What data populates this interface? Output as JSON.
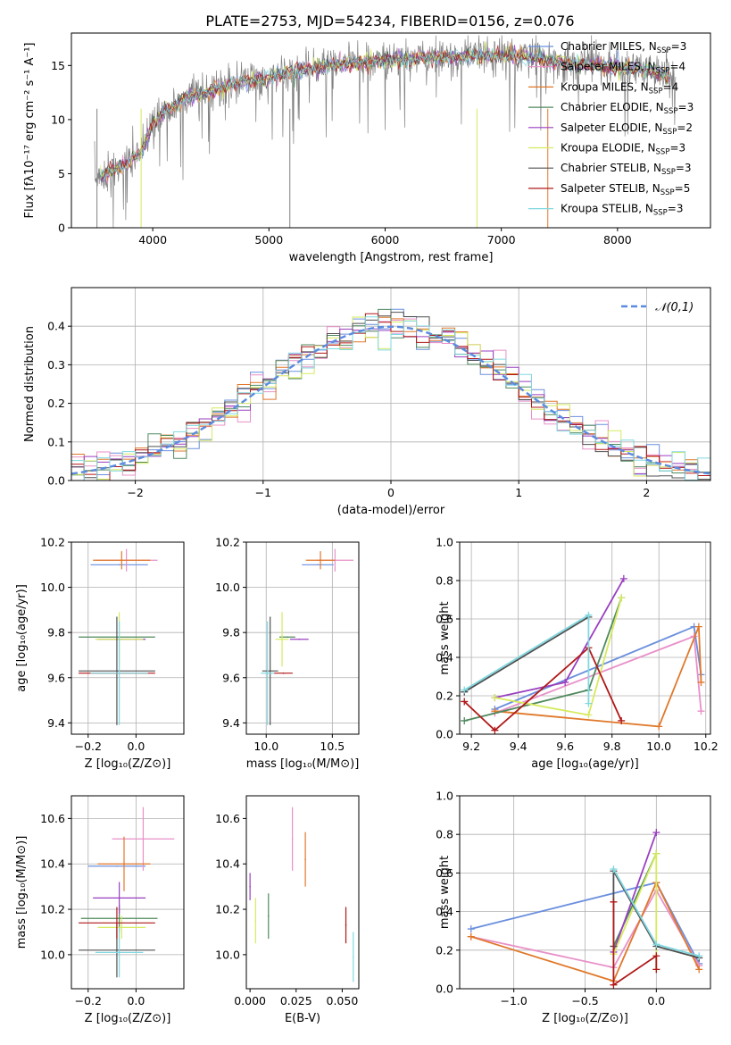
{
  "figure_title": "PLATE=2753, MJD=54234, FIBERID=0156, z=0.076",
  "models": [
    {
      "name": "Chabrier MILES",
      "nssp": "3",
      "color": "#6a8fde"
    },
    {
      "name": "Salpeter MILES",
      "nssp": "4",
      "color": "#e890c8"
    },
    {
      "name": "Kroupa MILES",
      "nssp": "4",
      "color": "#e0782a"
    },
    {
      "name": "Chabrier ELODIE",
      "nssp": "3",
      "color": "#4f8a5e"
    },
    {
      "name": "Salpeter ELODIE",
      "nssp": "2",
      "color": "#9a3fc0"
    },
    {
      "name": "Kroupa ELODIE",
      "nssp": "3",
      "color": "#d6ea5e"
    },
    {
      "name": "Chabrier STELIB",
      "nssp": "3",
      "color": "#505050"
    },
    {
      "name": "Salpeter STELIB",
      "nssp": "5",
      "color": "#b01818"
    },
    {
      "name": "Kroupa STELIB",
      "nssp": "3",
      "color": "#80d8e0"
    }
  ],
  "chart_data": [
    {
      "id": "spectrum",
      "type": "line",
      "xlabel": "wavelength [Angstrom, rest frame]",
      "ylabel": "Flux [fλ10⁻¹⁷ erg cm⁻² s⁻¹ A⁻¹]",
      "xlim": [
        3300,
        8800
      ],
      "ylim": [
        0,
        18
      ],
      "xticks": [
        4000,
        5000,
        6000,
        7000,
        8000
      ],
      "yticks": [
        0,
        5,
        10,
        15
      ],
      "grid": false,
      "legend": "top-right",
      "continuum": {
        "x": [
          3500,
          3700,
          3900,
          4000,
          4100,
          4300,
          4500,
          4800,
          5000,
          5200,
          5500,
          5800,
          6000,
          6300,
          6600,
          6900,
          7200,
          7400,
          7600,
          7800,
          8000,
          8200,
          8400,
          8500
        ],
        "y": [
          4.5,
          5.5,
          7.0,
          9.5,
          10.8,
          12.0,
          12.8,
          13.5,
          13.8,
          14.5,
          15.0,
          15.3,
          15.5,
          15.7,
          15.8,
          16.0,
          15.8,
          15.5,
          15.2,
          15.0,
          14.8,
          14.6,
          14.3,
          13.5
        ]
      }
    },
    {
      "id": "residuals",
      "type": "bar",
      "xlabel": "(data-model)/error",
      "ylabel": "Normed distribution",
      "xlim": [
        -2.5,
        2.5
      ],
      "ylim": [
        0,
        0.5
      ],
      "xticks": [
        -2,
        -1,
        0,
        1,
        2
      ],
      "yticks": [
        0.0,
        0.1,
        0.2,
        0.3,
        0.4
      ],
      "grid": true,
      "legend": "top-right",
      "reference_label": "𝒩(0,1)",
      "bin_width": 0.1
    },
    {
      "id": "age_vs_Z",
      "type": "scatter",
      "xlabel": "Z [log₁₀(Z/Z⊙)]",
      "ylabel": "age  [log₁₀(age/yr)]",
      "xlim": [
        -0.27,
        0.2
      ],
      "ylim": [
        9.35,
        10.2
      ],
      "xticks": [
        -0.2,
        0.0
      ],
      "yticks": [
        9.4,
        9.6,
        9.8,
        10.0,
        10.2
      ],
      "grid": true,
      "points": [
        {
          "x": -0.07,
          "xe": 0.12,
          "y": 10.1,
          "ye": 0.0,
          "model": 0
        },
        {
          "x": -0.04,
          "xe": 0.13,
          "y": 10.12,
          "ye": 0.05,
          "model": 1
        },
        {
          "x": -0.06,
          "xe": 0.12,
          "y": 10.12,
          "ye": 0.04,
          "model": 2
        },
        {
          "x": -0.08,
          "xe": 0.16,
          "y": 9.78,
          "ye": 0.0,
          "model": 3
        },
        {
          "x": -0.06,
          "xe": 0.1,
          "y": 9.77,
          "ye": 0.0,
          "model": 4
        },
        {
          "x": -0.07,
          "xe": 0.1,
          "y": 9.77,
          "ye": 0.12,
          "model": 5
        },
        {
          "x": -0.08,
          "xe": 0.16,
          "y": 9.63,
          "ye": 0.24,
          "model": 6
        },
        {
          "x": -0.08,
          "xe": 0.16,
          "y": 9.62,
          "ye": 0.0,
          "model": 7
        },
        {
          "x": -0.07,
          "xe": 0.12,
          "y": 9.62,
          "ye": 0.23,
          "model": 8
        }
      ]
    },
    {
      "id": "age_vs_mass",
      "type": "scatter",
      "xlabel": "mass [log₁₀(M/M⊙)]",
      "ylabel": "",
      "xlim": [
        9.85,
        10.7
      ],
      "ylim": [
        9.35,
        10.2
      ],
      "xticks": [
        10.0,
        10.5
      ],
      "yticks": [
        9.4,
        9.6,
        9.8,
        10.0,
        10.2
      ],
      "grid": true,
      "points": [
        {
          "x": 10.39,
          "xe": 0.12,
          "y": 10.1,
          "ye": 0.0,
          "model": 0
        },
        {
          "x": 10.52,
          "xe": 0.14,
          "y": 10.12,
          "ye": 0.05,
          "model": 1
        },
        {
          "x": 10.41,
          "xe": 0.11,
          "y": 10.12,
          "ye": 0.04,
          "model": 2
        },
        {
          "x": 10.16,
          "xe": 0.06,
          "y": 9.78,
          "ye": 0.0,
          "model": 3
        },
        {
          "x": 10.25,
          "xe": 0.07,
          "y": 9.77,
          "ye": 0.0,
          "model": 4
        },
        {
          "x": 10.12,
          "xe": 0.05,
          "y": 9.77,
          "ye": 0.12,
          "model": 5
        },
        {
          "x": 10.03,
          "xe": 0.06,
          "y": 9.63,
          "ye": 0.24,
          "model": 6
        },
        {
          "x": 10.13,
          "xe": 0.07,
          "y": 9.62,
          "ye": 0.0,
          "model": 7
        },
        {
          "x": 10.01,
          "xe": 0.05,
          "y": 9.62,
          "ye": 0.23,
          "model": 8
        }
      ]
    },
    {
      "id": "weight_vs_age",
      "type": "line",
      "xlabel": "age  [log₁₀(age/yr)]",
      "ylabel": "mass weight",
      "xlim": [
        9.15,
        10.22
      ],
      "ylim": [
        0.0,
        1.0
      ],
      "xticks": [
        9.2,
        9.4,
        9.6,
        9.8,
        10.0,
        10.2
      ],
      "yticks": [
        0.0,
        0.2,
        0.4,
        0.6,
        0.8,
        1.0
      ],
      "grid": true,
      "series": [
        {
          "model": 0,
          "x": [
            9.3,
            10.15,
            10.18
          ],
          "y": [
            0.13,
            0.56,
            0.31
          ]
        },
        {
          "model": 1,
          "x": [
            9.3,
            10.15,
            10.18
          ],
          "y": [
            0.11,
            0.51,
            0.12
          ]
        },
        {
          "model": 2,
          "x": [
            9.3,
            10.0,
            10.17,
            10.18
          ],
          "y": [
            0.12,
            0.04,
            0.56,
            0.27
          ]
        },
        {
          "model": 3,
          "x": [
            9.17,
            9.7,
            9.84
          ],
          "y": [
            0.07,
            0.23,
            0.71
          ]
        },
        {
          "model": 4,
          "x": [
            9.3,
            9.6,
            9.85
          ],
          "y": [
            0.19,
            0.27,
            0.81
          ]
        },
        {
          "model": 5,
          "x": [
            9.3,
            9.7,
            9.84
          ],
          "y": [
            0.19,
            0.1,
            0.71
          ]
        },
        {
          "model": 6,
          "x": [
            9.17,
            9.7
          ],
          "y": [
            0.22,
            0.61
          ]
        },
        {
          "model": 7,
          "x": [
            9.17,
            9.3,
            9.7,
            9.84
          ],
          "y": [
            0.17,
            0.02,
            0.45,
            0.07
          ]
        },
        {
          "model": 8,
          "x": [
            9.17,
            9.7,
            9.7
          ],
          "y": [
            0.23,
            0.62,
            0.16
          ]
        }
      ]
    },
    {
      "id": "mass_vs_Z",
      "type": "scatter",
      "xlabel": "Z [log₁₀(Z/Z⊙)]",
      "ylabel": "mass [log₁₀(M/M⊙)]",
      "xlim": [
        -0.27,
        0.2
      ],
      "ylim": [
        9.85,
        10.7
      ],
      "xticks": [
        -0.2,
        0.0
      ],
      "yticks": [
        10.0,
        10.2,
        10.4,
        10.6
      ],
      "grid": true,
      "points": [
        {
          "x": -0.08,
          "xe": 0.12,
          "y": 10.39,
          "ye": 0.0,
          "model": 0
        },
        {
          "x": 0.03,
          "xe": 0.13,
          "y": 10.51,
          "ye": 0.14,
          "model": 1
        },
        {
          "x": -0.05,
          "xe": 0.11,
          "y": 10.4,
          "ye": 0.12,
          "model": 2
        },
        {
          "x": -0.07,
          "xe": 0.16,
          "y": 10.16,
          "ye": 0.06,
          "model": 3
        },
        {
          "x": -0.07,
          "xe": 0.11,
          "y": 10.25,
          "ye": 0.07,
          "model": 4
        },
        {
          "x": -0.06,
          "xe": 0.1,
          "y": 10.12,
          "ye": 0.05,
          "model": 5
        },
        {
          "x": -0.08,
          "xe": 0.16,
          "y": 10.02,
          "ye": 0.12,
          "model": 6
        },
        {
          "x": -0.08,
          "xe": 0.16,
          "y": 10.14,
          "ye": 0.07,
          "model": 7
        },
        {
          "x": -0.07,
          "xe": 0.1,
          "y": 10.01,
          "ye": 0.11,
          "model": 8
        }
      ]
    },
    {
      "id": "mass_vs_ebv",
      "type": "scatter",
      "xlabel": "E(B-V)",
      "ylabel": "",
      "xlim": [
        -0.002,
        0.059
      ],
      "ylim": [
        9.85,
        10.7
      ],
      "xticks": [
        0.0,
        0.025,
        0.05
      ],
      "xticklabels": [
        "0.000",
        "0.025",
        "0.050"
      ],
      "yticks": [
        10.0,
        10.2,
        10.4,
        10.6
      ],
      "grid": false,
      "points": [
        {
          "x": 0.0,
          "y": 10.3,
          "ye": 0.06,
          "model": 4
        },
        {
          "x": 0.003,
          "y": 10.15,
          "ye": 0.1,
          "model": 5
        },
        {
          "x": 0.01,
          "y": 10.17,
          "ye": 0.1,
          "model": 3
        },
        {
          "x": 0.023,
          "y": 10.51,
          "ye": 0.14,
          "model": 1
        },
        {
          "x": 0.03,
          "y": 10.42,
          "ye": 0.12,
          "model": 2
        },
        {
          "x": 0.052,
          "y": 10.13,
          "ye": 0.08,
          "model": 7
        },
        {
          "x": 0.056,
          "y": 9.99,
          "ye": 0.11,
          "model": 8
        }
      ]
    },
    {
      "id": "weight_vs_Z",
      "type": "line",
      "xlabel": "Z [log₁₀(Z/Z⊙)]",
      "ylabel": "mass weight",
      "xlim": [
        -1.38,
        0.38
      ],
      "ylim": [
        0.0,
        1.0
      ],
      "xticks": [
        -1.0,
        -0.5,
        0.0
      ],
      "yticks": [
        0.0,
        0.2,
        0.4,
        0.6,
        0.8,
        1.0
      ],
      "grid": true,
      "series": [
        {
          "model": 0,
          "x": [
            -1.3,
            0.0,
            0.3
          ],
          "y": [
            0.31,
            0.55,
            0.13
          ]
        },
        {
          "model": 1,
          "x": [
            -1.3,
            -0.3,
            0.0,
            0.3
          ],
          "y": [
            0.27,
            0.11,
            0.51,
            0.12
          ]
        },
        {
          "model": 2,
          "x": [
            -1.3,
            -0.3,
            0.0,
            0.3
          ],
          "y": [
            0.27,
            0.04,
            0.55,
            0.1
          ]
        },
        {
          "model": 3,
          "x": [
            -0.3,
            0.0
          ],
          "y": [
            0.22,
            0.7
          ]
        },
        {
          "model": 4,
          "x": [
            -0.3,
            0.0
          ],
          "y": [
            0.19,
            0.81
          ]
        },
        {
          "model": 5,
          "x": [
            -0.3,
            0.0,
            0.0
          ],
          "y": [
            0.18,
            0.7,
            0.1
          ]
        },
        {
          "model": 6,
          "x": [
            -0.3,
            -0.3,
            0.0,
            0.3
          ],
          "y": [
            0.22,
            0.61,
            0.22,
            0.16
          ]
        },
        {
          "model": 7,
          "x": [
            -0.3,
            -0.3,
            0.0,
            0.0
          ],
          "y": [
            0.45,
            0.02,
            0.17,
            0.1
          ]
        },
        {
          "model": 8,
          "x": [
            -0.3,
            0.0,
            0.3
          ],
          "y": [
            0.62,
            0.23,
            0.17
          ]
        }
      ]
    }
  ]
}
